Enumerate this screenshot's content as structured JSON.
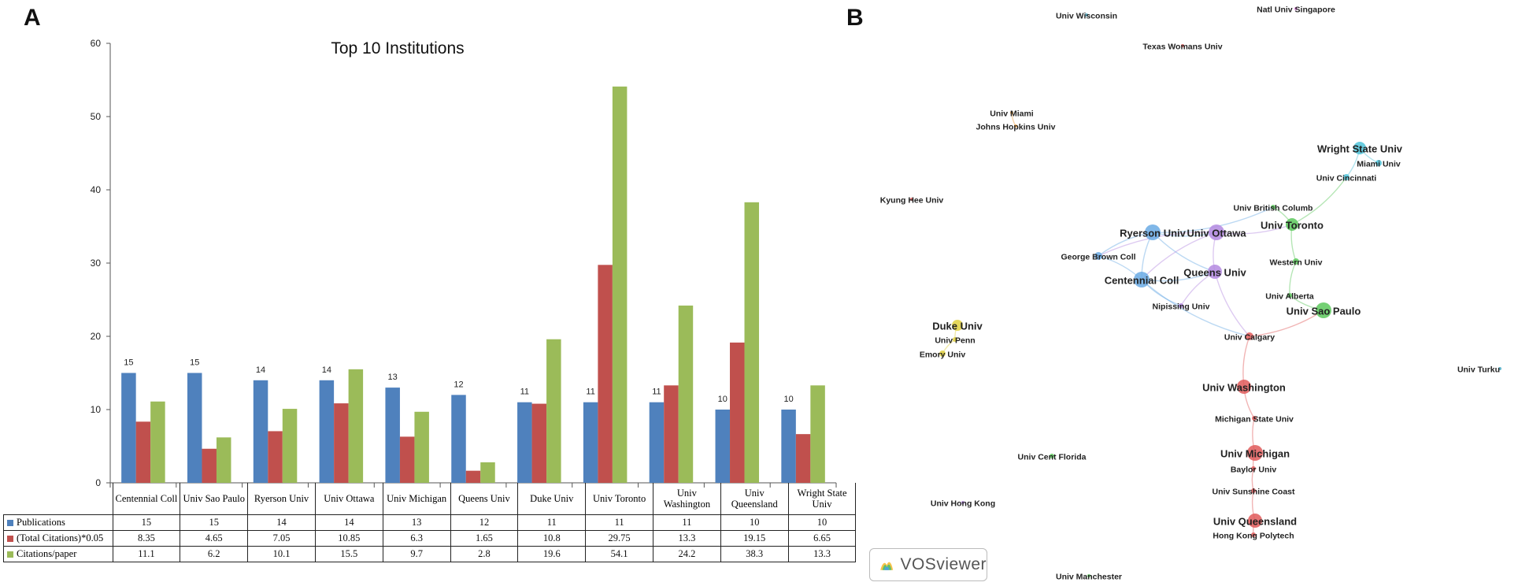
{
  "panels": {
    "a": "A",
    "b": "B"
  },
  "colors": {
    "publications": "#4f81bd",
    "citations": "#c0504d",
    "per_paper": "#9bbb59"
  },
  "chart_data": {
    "type": "bar",
    "title": "Top 10 Institutions",
    "categories": [
      "Centennial Coll",
      "Univ Sao Paulo",
      "Ryerson Univ",
      "Univ Ottawa",
      "Univ Michigan",
      "Queens Univ",
      "Duke Univ",
      "Univ Toronto",
      "Univ Washington",
      "Univ Queensland",
      "Wright State Univ"
    ],
    "ylim": [
      0,
      60
    ],
    "yticks": [
      0,
      10,
      20,
      30,
      40,
      50,
      60
    ],
    "grid": false,
    "series": [
      {
        "name": "Publications",
        "color": "#4f81bd",
        "values": [
          15,
          15,
          14,
          14,
          13,
          12,
          11,
          11,
          11,
          10,
          10
        ]
      },
      {
        "name": "(Total Citations)*0.05",
        "color": "#c0504d",
        "values": [
          8.35,
          4.65,
          7.05,
          10.85,
          6.3,
          1.65,
          10.8,
          29.75,
          13.3,
          19.15,
          6.65
        ]
      },
      {
        "name": "Citations/paper",
        "color": "#9bbb59",
        "values": [
          11.1,
          6.2,
          10.1,
          15.5,
          9.7,
          2.8,
          19.6,
          54.1,
          24.2,
          38.3,
          13.3
        ]
      }
    ],
    "data_labels": [
      "15",
      "15",
      "14",
      "14",
      "13",
      "12",
      "11",
      "11",
      "11",
      "10",
      "10"
    ]
  },
  "network": {
    "nodes": [
      {
        "label": "Univ Wisconsin",
        "color": "#4bacc6",
        "size": 2,
        "bold": false
      },
      {
        "label": "Natl Univ Singapore",
        "color": "#e07be0",
        "size": 2,
        "bold": false
      },
      {
        "label": "Texas Womans Univ",
        "color": "#e05a5a",
        "size": 2,
        "bold": false
      },
      {
        "label": "Univ Miami",
        "color": "#f0a040",
        "size": 2,
        "bold": false
      },
      {
        "label": "Johns Hopkins Univ",
        "color": "#f0a040",
        "size": 2,
        "bold": false
      },
      {
        "label": "Wright State Univ",
        "color": "#4fc3d9",
        "size": 8,
        "bold": true
      },
      {
        "label": "Miami Univ",
        "color": "#4fc3d9",
        "size": 4,
        "bold": false
      },
      {
        "label": "Univ Cincinnati",
        "color": "#4fc3d9",
        "size": 4,
        "bold": false
      },
      {
        "label": "Kyung Hee Univ",
        "color": "#e05a5a",
        "size": 2,
        "bold": false
      },
      {
        "label": "Univ British Columb",
        "color": "#5cc85c",
        "size": 3,
        "bold": false
      },
      {
        "label": "Ryerson Univ",
        "color": "#6aaae4",
        "size": 10,
        "bold": true
      },
      {
        "label": "Univ Ottawa",
        "color": "#b48ae0",
        "size": 10,
        "bold": true
      },
      {
        "label": "Univ Toronto",
        "color": "#5cc85c",
        "size": 8,
        "bold": true
      },
      {
        "label": "George Brown Coll",
        "color": "#6aaae4",
        "size": 5,
        "bold": false
      },
      {
        "label": "Western Univ",
        "color": "#5cc85c",
        "size": 4,
        "bold": false
      },
      {
        "label": "Queens Univ",
        "color": "#b48ae0",
        "size": 9,
        "bold": true
      },
      {
        "label": "Centennial Coll",
        "color": "#6aaae4",
        "size": 10,
        "bold": true
      },
      {
        "label": "Univ Alberta",
        "color": "#5cc85c",
        "size": 3,
        "bold": false
      },
      {
        "label": "Univ Sao Paulo",
        "color": "#5cc85c",
        "size": 10,
        "bold": true
      },
      {
        "label": "Nipissing Univ",
        "color": "#b48ae0",
        "size": 3,
        "bold": false
      },
      {
        "label": "Duke Univ",
        "color": "#e0d040",
        "size": 7,
        "bold": true
      },
      {
        "label": "Univ Penn",
        "color": "#e0d040",
        "size": 3,
        "bold": false
      },
      {
        "label": "Emory Univ",
        "color": "#e0d040",
        "size": 4,
        "bold": false
      },
      {
        "label": "Univ Calgary",
        "color": "#e05a5a",
        "size": 5,
        "bold": false
      },
      {
        "label": "Univ Turku",
        "color": "#4bacc6",
        "size": 2,
        "bold": false
      },
      {
        "label": "Univ Washington",
        "color": "#e05a5a",
        "size": 9,
        "bold": true
      },
      {
        "label": "Michigan State Univ",
        "color": "#e05a5a",
        "size": 3,
        "bold": false
      },
      {
        "label": "Univ Cent Florida",
        "color": "#5cc85c",
        "size": 3,
        "bold": false
      },
      {
        "label": "Univ Michigan",
        "color": "#e05a5a",
        "size": 10,
        "bold": true
      },
      {
        "label": "Baylor Univ",
        "color": "#e05a5a",
        "size": 3,
        "bold": false
      },
      {
        "label": "Univ Sunshine Coast",
        "color": "#e05a5a",
        "size": 3,
        "bold": false
      },
      {
        "label": "Univ Hong Kong",
        "color": "#b48ae0",
        "size": 2,
        "bold": false
      },
      {
        "label": "Univ Queensland",
        "color": "#e05a5a",
        "size": 9,
        "bold": true
      },
      {
        "label": "Hong Kong Polytech",
        "color": "#e05a5a",
        "size": 3,
        "bold": false
      },
      {
        "label": "Univ Manchester",
        "color": "#5cc85c",
        "size": 2,
        "bold": false
      }
    ],
    "links": [
      [
        "Ryerson Univ",
        "Univ Ottawa"
      ],
      [
        "Ryerson Univ",
        "Centennial Coll"
      ],
      [
        "Ryerson Univ",
        "George Brown Coll"
      ],
      [
        "Ryerson Univ",
        "Queens Univ"
      ],
      [
        "Univ Ottawa",
        "Queens Univ"
      ],
      [
        "Univ Ottawa",
        "Centennial Coll"
      ],
      [
        "Univ Ottawa",
        "George Brown Coll"
      ],
      [
        "Centennial Coll",
        "Queens Univ"
      ],
      [
        "Centennial Coll",
        "George Brown Coll"
      ],
      [
        "Centennial Coll",
        "Nipissing Univ"
      ],
      [
        "Queens Univ",
        "Nipissing Univ"
      ],
      [
        "Univ Ottawa",
        "Univ Toronto"
      ],
      [
        "Univ Toronto",
        "Univ British Columb"
      ],
      [
        "Univ Toronto",
        "Western Univ"
      ],
      [
        "Univ Toronto",
        "Univ Cincinnati"
      ],
      [
        "Univ Cincinnati",
        "Wright State Univ"
      ],
      [
        "Wright State Univ",
        "Miami Univ"
      ],
      [
        "Western Univ",
        "Univ Alberta"
      ],
      [
        "Univ Alberta",
        "Univ Sao Paulo"
      ],
      [
        "Queens Univ",
        "Univ Calgary"
      ],
      [
        "Centennial Coll",
        "Univ Calgary"
      ],
      [
        "Univ Calgary",
        "Univ Sao Paulo"
      ],
      [
        "Univ Calgary",
        "Univ Washington"
      ],
      [
        "Univ Washington",
        "Michigan State Univ"
      ],
      [
        "Michigan State Univ",
        "Univ Michigan"
      ],
      [
        "Univ Michigan",
        "Baylor Univ"
      ],
      [
        "Baylor Univ",
        "Univ Sunshine Coast"
      ],
      [
        "Univ Sunshine Coast",
        "Univ Queensland"
      ],
      [
        "Univ Queensland",
        "Hong Kong Polytech"
      ],
      [
        "Ryerson Univ",
        "Univ British Columb"
      ],
      [
        "Duke Univ",
        "Univ Penn"
      ],
      [
        "Univ Penn",
        "Emory Univ"
      ],
      [
        "Univ Miami",
        "Johns Hopkins Univ"
      ]
    ]
  },
  "logo": {
    "text": "VOSviewer"
  }
}
